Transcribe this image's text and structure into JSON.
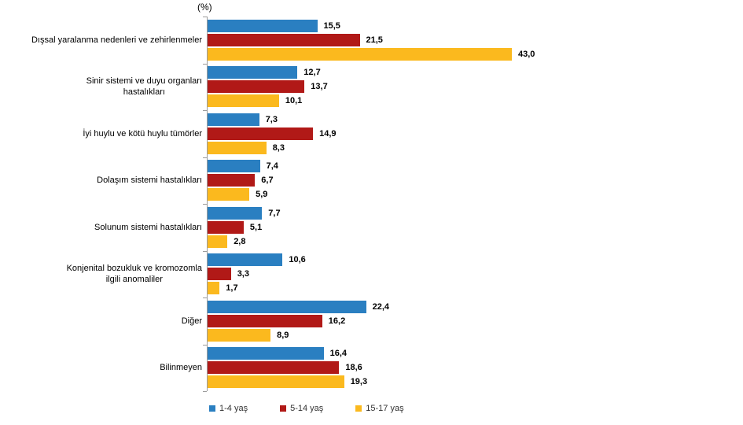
{
  "chart_data": {
    "type": "bar",
    "orientation": "horizontal",
    "title": "",
    "unit_label": "(%)",
    "xlabel": "",
    "ylabel": "",
    "xlim": [
      0,
      48
    ],
    "grid": false,
    "legend_position": "bottom",
    "decimal_separator": ",",
    "categories": [
      {
        "label": "Dışsal yaralanma nedenleri ve zehirlenmeler",
        "label_lines": [
          "Dışsal yaralanma nedenleri ve zehirlenmeler"
        ]
      },
      {
        "label": "Sinir sistemi ve duyu organları hastalıkları",
        "label_lines": [
          "Sinir sistemi ve duyu organları",
          "hastalıkları"
        ]
      },
      {
        "label": "İyi huylu ve kötü huylu tümörler",
        "label_lines": [
          "İyi huylu ve kötü huylu tümörler"
        ]
      },
      {
        "label": "Dolaşım sistemi hastalıkları",
        "label_lines": [
          "Dolaşım sistemi hastalıkları"
        ]
      },
      {
        "label": "Solunum sistemi hastalıkları",
        "label_lines": [
          "Solunum sistemi hastalıkları"
        ]
      },
      {
        "label": "Konjenital bozukluk ve kromozomla ilgili anomaliler",
        "label_lines": [
          "Konjenital bozukluk ve kromozomla",
          "ilgili anomaliler"
        ]
      },
      {
        "label": "Diğer",
        "label_lines": [
          "Diğer"
        ]
      },
      {
        "label": "Bilinmeyen",
        "label_lines": [
          "Bilinmeyen"
        ]
      }
    ],
    "series": [
      {
        "name": "1-4 yaş",
        "color": "#2A7FC1",
        "values": [
          15.5,
          12.7,
          7.3,
          7.4,
          7.7,
          10.6,
          22.4,
          16.4
        ]
      },
      {
        "name": "5-14 yaş",
        "color": "#B11917",
        "values": [
          21.5,
          13.7,
          14.9,
          6.7,
          5.1,
          3.3,
          16.2,
          18.6
        ]
      },
      {
        "name": "15-17 yaş",
        "color": "#FBB91E",
        "values": [
          43.0,
          10.1,
          8.3,
          5.9,
          2.8,
          1.7,
          8.9,
          19.3
        ]
      }
    ],
    "value_labels_visible": true,
    "axis_color": "#9c9c9c"
  }
}
